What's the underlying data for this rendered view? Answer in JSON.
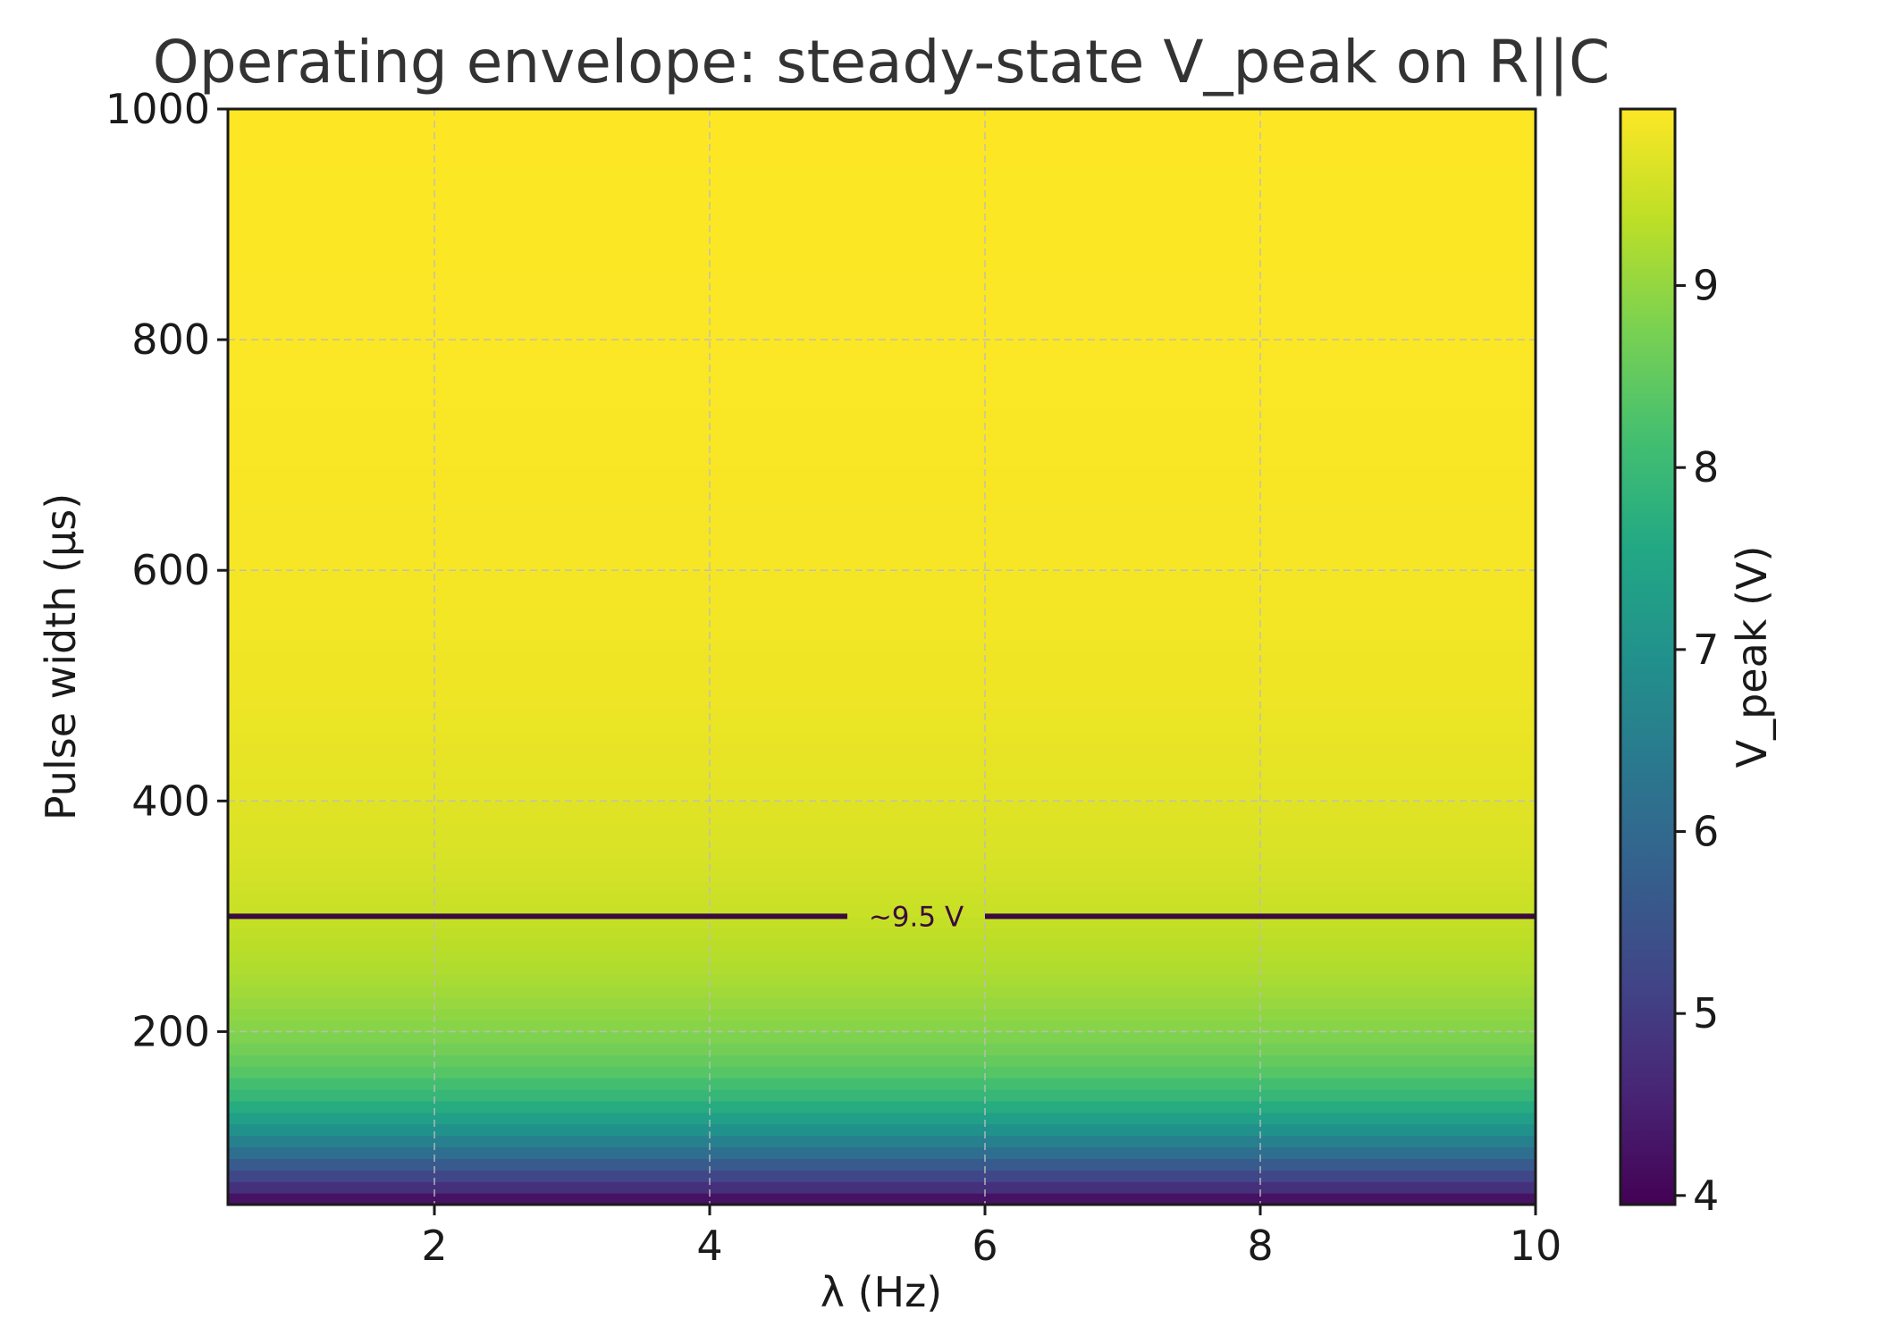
{
  "chart_data": {
    "type": "heatmap",
    "title": "Operating envelope: steady-state V_peak on R||C",
    "xlabel": "λ (Hz)",
    "ylabel": "Pulse width (µs)",
    "xlim": [
      0.5,
      10
    ],
    "ylim": [
      50,
      1000
    ],
    "x_ticks": [
      2,
      4,
      6,
      8,
      10
    ],
    "y_ticks": [
      200,
      400,
      600,
      800,
      1000
    ],
    "grid": true,
    "colormap": "viridis",
    "colorbar": {
      "label": "V_peak (V)",
      "range": [
        3.95,
        9.97
      ],
      "ticks": [
        4,
        5,
        6,
        7,
        8,
        9
      ]
    },
    "field": {
      "varies_along": "y",
      "pulse_width_us": [
        50,
        60,
        70,
        80,
        90,
        100,
        110,
        120,
        130,
        140,
        150,
        160,
        170,
        180,
        190,
        200,
        220,
        240,
        260,
        280,
        300,
        320,
        340,
        360,
        380,
        400,
        450,
        500,
        550,
        600,
        700,
        800,
        900,
        1000
      ],
      "v_peak": [
        3.95,
        4.55,
        5.0,
        5.45,
        5.9,
        6.35,
        6.75,
        7.15,
        7.5,
        7.8,
        8.05,
        8.25,
        8.45,
        8.6,
        8.75,
        8.85,
        9.0,
        9.15,
        9.27,
        9.37,
        9.45,
        9.52,
        9.58,
        9.63,
        9.67,
        9.71,
        9.78,
        9.83,
        9.87,
        9.9,
        9.93,
        9.95,
        9.96,
        9.97
      ]
    },
    "contour": {
      "label": "~9.5 V",
      "pulse_width_us": 300,
      "color": "#3b0a3e"
    }
  }
}
